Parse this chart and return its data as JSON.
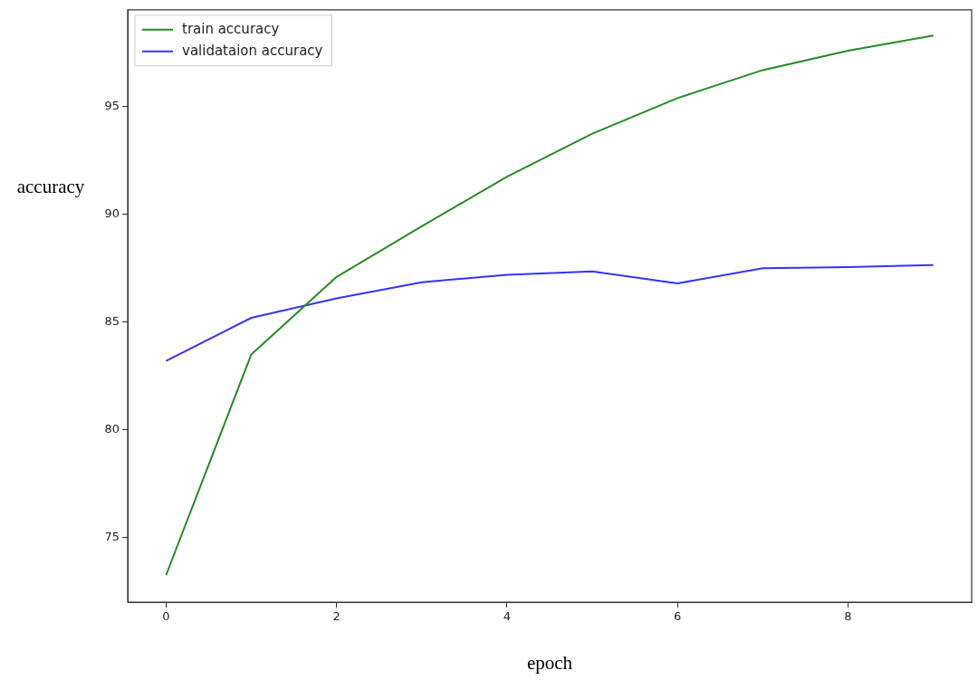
{
  "chart_data": {
    "type": "line",
    "xlabel": "epoch",
    "ylabel": "accuracy",
    "x": [
      0,
      1,
      2,
      3,
      4,
      5,
      6,
      7,
      8,
      9
    ],
    "series": [
      {
        "name": "train accuracy",
        "color": "#228b22",
        "values": [
          73.25,
          83.5,
          87.1,
          89.45,
          91.75,
          93.75,
          95.4,
          96.7,
          97.6,
          98.3
        ]
      },
      {
        "name": "validataion accuracy",
        "color": "#3333ff",
        "values": [
          83.2,
          85.2,
          86.1,
          86.85,
          87.2,
          87.35,
          86.8,
          87.5,
          87.55,
          87.65
        ]
      }
    ],
    "xlim": [
      -0.45,
      9.45
    ],
    "ylim": [
      72.0,
      99.5
    ],
    "xticks": [
      0,
      2,
      4,
      6,
      8
    ],
    "yticks": [
      75,
      80,
      85,
      90,
      95
    ],
    "grid": false,
    "legend": "top left",
    "marker": "none",
    "line_style": "solid"
  }
}
